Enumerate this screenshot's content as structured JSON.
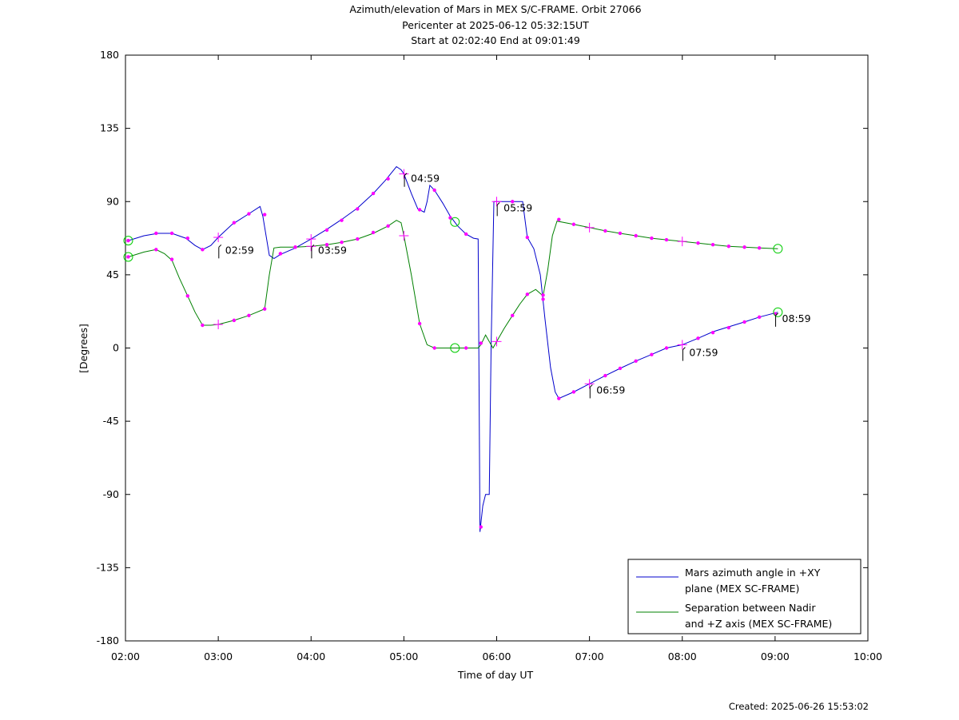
{
  "title": {
    "line1": "Azimuth/elevation of Mars in MEX S/C-FRAME.  Orbit 27066",
    "line2": "Pericenter at 2025-06-12 05:32:15UT",
    "line3": "Start at 02:02:40 End at 09:01:49"
  },
  "footer": {
    "created": "Created: 2025-06-26 15:53:02"
  },
  "chart_data": {
    "type": "line",
    "xlabel": "Time of day UT",
    "ylabel": "[Degrees]",
    "xlim": [
      2.0,
      10.0
    ],
    "ylim": [
      -180,
      180
    ],
    "x_ticks": [
      2,
      3,
      4,
      5,
      6,
      7,
      8,
      9,
      10
    ],
    "x_tick_labels": [
      "02:00",
      "03:00",
      "04:00",
      "05:00",
      "06:00",
      "07:00",
      "08:00",
      "09:00",
      "10:00"
    ],
    "y_ticks": [
      180,
      135,
      90,
      45,
      0,
      -45,
      -90,
      -135,
      -180
    ],
    "y_tick_labels": [
      "180",
      "135",
      "90",
      "45",
      "0",
      "-45",
      "-90",
      "-135",
      "-180"
    ],
    "grid": false,
    "legend_position": "bottom-right",
    "colors": {
      "azimuth": "#0000cc",
      "separation": "#008000",
      "marker": "#ff00ff",
      "endpoint": "#00cc00"
    },
    "series": [
      {
        "name_line1": "Mars azimuth angle in +XY",
        "name_line2": "plane (MEX SC-FRAME)",
        "color": "#0000cc",
        "points": [
          [
            2.03,
            66
          ],
          [
            2.2,
            69
          ],
          [
            2.35,
            70.5
          ],
          [
            2.5,
            70.5
          ],
          [
            2.65,
            67.5
          ],
          [
            2.75,
            63
          ],
          [
            2.83,
            60.5
          ],
          [
            2.92,
            63
          ],
          [
            3.0,
            68
          ],
          [
            3.15,
            76
          ],
          [
            3.33,
            82.5
          ],
          [
            3.45,
            87
          ],
          [
            3.48,
            81
          ],
          [
            3.55,
            57
          ],
          [
            3.6,
            55
          ],
          [
            3.67,
            57.5
          ],
          [
            3.83,
            61.5
          ],
          [
            4.0,
            67
          ],
          [
            4.17,
            73
          ],
          [
            4.33,
            79
          ],
          [
            4.5,
            86
          ],
          [
            4.67,
            95
          ],
          [
            4.8,
            103
          ],
          [
            4.92,
            111.5
          ],
          [
            4.97,
            109.5
          ],
          [
            5.0,
            107
          ],
          [
            5.08,
            95
          ],
          [
            5.15,
            85.5
          ],
          [
            5.22,
            83.5
          ],
          [
            5.25,
            90
          ],
          [
            5.28,
            100
          ],
          [
            5.33,
            97
          ],
          [
            5.42,
            89
          ],
          [
            5.5,
            81
          ],
          [
            5.58,
            75
          ],
          [
            5.67,
            70
          ],
          [
            5.75,
            67.5
          ],
          [
            5.8,
            67
          ],
          [
            5.82,
            -113
          ],
          [
            5.85,
            -97
          ],
          [
            5.88,
            -90
          ],
          [
            5.92,
            -90
          ],
          [
            5.94,
            0
          ],
          [
            5.97,
            90
          ],
          [
            6.0,
            90
          ],
          [
            6.17,
            90
          ],
          [
            6.28,
            90
          ],
          [
            6.33,
            68
          ],
          [
            6.4,
            61
          ],
          [
            6.47,
            45
          ],
          [
            6.52,
            18
          ],
          [
            6.58,
            -12
          ],
          [
            6.63,
            -27
          ],
          [
            6.67,
            -31
          ],
          [
            6.83,
            -27
          ],
          [
            7.0,
            -22
          ],
          [
            7.17,
            -17
          ],
          [
            7.33,
            -12.5
          ],
          [
            7.5,
            -8
          ],
          [
            7.67,
            -4
          ],
          [
            7.83,
            0
          ],
          [
            8.0,
            2
          ],
          [
            8.17,
            6
          ],
          [
            8.33,
            10
          ],
          [
            8.5,
            13
          ],
          [
            8.67,
            16
          ],
          [
            8.83,
            19
          ],
          [
            9.03,
            22
          ]
        ],
        "markers": [
          [
            2.03,
            66
          ],
          [
            2.33,
            70.5
          ],
          [
            2.5,
            70.5
          ],
          [
            2.67,
            67.5
          ],
          [
            2.83,
            60.5
          ],
          [
            3.17,
            77
          ],
          [
            3.33,
            82.5
          ],
          [
            3.5,
            82
          ],
          [
            3.67,
            58
          ],
          [
            3.83,
            62
          ],
          [
            4.17,
            72.5
          ],
          [
            4.33,
            78.5
          ],
          [
            4.5,
            85.5
          ],
          [
            4.67,
            95
          ],
          [
            4.83,
            104
          ],
          [
            5.17,
            85
          ],
          [
            5.33,
            97
          ],
          [
            5.5,
            80
          ],
          [
            5.67,
            70
          ],
          [
            5.83,
            -110
          ],
          [
            5.83,
            3
          ],
          [
            6.17,
            90
          ],
          [
            6.33,
            68
          ],
          [
            6.5,
            30
          ],
          [
            6.67,
            -31
          ],
          [
            6.83,
            -27
          ],
          [
            7.17,
            -17
          ],
          [
            7.33,
            -12.5
          ],
          [
            7.5,
            -8
          ],
          [
            7.67,
            -4
          ],
          [
            7.83,
            0
          ],
          [
            8.17,
            6
          ],
          [
            8.33,
            9.5
          ],
          [
            8.5,
            12.5
          ],
          [
            8.67,
            16
          ],
          [
            8.83,
            19
          ],
          [
            9.0,
            21
          ]
        ]
      },
      {
        "name_line1": "Separation between Nadir",
        "name_line2": "and +Z axis (MEX SC-FRAME)",
        "color": "#008000",
        "points": [
          [
            2.03,
            56
          ],
          [
            2.2,
            59
          ],
          [
            2.33,
            60.5
          ],
          [
            2.42,
            58
          ],
          [
            2.5,
            54
          ],
          [
            2.58,
            43
          ],
          [
            2.67,
            32
          ],
          [
            2.75,
            22
          ],
          [
            2.83,
            14
          ],
          [
            2.92,
            14
          ],
          [
            3.0,
            14.5
          ],
          [
            3.17,
            17
          ],
          [
            3.33,
            20
          ],
          [
            3.5,
            24
          ],
          [
            3.55,
            45
          ],
          [
            3.6,
            61.5
          ],
          [
            3.67,
            62
          ],
          [
            3.83,
            62
          ],
          [
            4.0,
            62.5
          ],
          [
            4.17,
            63.5
          ],
          [
            4.33,
            65
          ],
          [
            4.5,
            67
          ],
          [
            4.67,
            70.5
          ],
          [
            4.83,
            75
          ],
          [
            4.92,
            78.5
          ],
          [
            4.97,
            77
          ],
          [
            5.0,
            69
          ],
          [
            5.08,
            45
          ],
          [
            5.17,
            15
          ],
          [
            5.25,
            2
          ],
          [
            5.33,
            0
          ],
          [
            5.5,
            0
          ],
          [
            5.67,
            0
          ],
          [
            5.8,
            0
          ],
          [
            5.83,
            2
          ],
          [
            5.88,
            8
          ],
          [
            5.92,
            4
          ],
          [
            5.96,
            0
          ],
          [
            6.0,
            4
          ],
          [
            6.08,
            12
          ],
          [
            6.17,
            20
          ],
          [
            6.25,
            27
          ],
          [
            6.33,
            33
          ],
          [
            6.42,
            36
          ],
          [
            6.48,
            33
          ],
          [
            6.5,
            32
          ],
          [
            6.55,
            48
          ],
          [
            6.6,
            69
          ],
          [
            6.65,
            78
          ],
          [
            6.83,
            76
          ],
          [
            7.0,
            74
          ],
          [
            7.17,
            72
          ],
          [
            7.33,
            70.5
          ],
          [
            7.5,
            69
          ],
          [
            7.67,
            67.5
          ],
          [
            7.83,
            66.5
          ],
          [
            8.0,
            65.5
          ],
          [
            8.17,
            64.5
          ],
          [
            8.33,
            63.5
          ],
          [
            8.5,
            62.5
          ],
          [
            8.67,
            62
          ],
          [
            8.83,
            61.5
          ],
          [
            9.03,
            61
          ]
        ],
        "markers": [
          [
            2.03,
            56
          ],
          [
            2.33,
            60.5
          ],
          [
            2.5,
            54.5
          ],
          [
            2.67,
            32
          ],
          [
            2.83,
            14
          ],
          [
            3.17,
            17
          ],
          [
            3.33,
            20
          ],
          [
            3.5,
            24
          ],
          [
            3.67,
            58
          ],
          [
            3.83,
            62
          ],
          [
            4.17,
            63.5
          ],
          [
            4.33,
            65
          ],
          [
            4.5,
            67
          ],
          [
            4.67,
            71
          ],
          [
            4.83,
            75
          ],
          [
            5.17,
            15
          ],
          [
            5.33,
            0
          ],
          [
            5.67,
            0
          ],
          [
            6.17,
            20
          ],
          [
            6.33,
            33
          ],
          [
            6.5,
            32.5
          ],
          [
            6.67,
            79
          ],
          [
            6.83,
            76
          ],
          [
            7.17,
            72
          ],
          [
            7.33,
            70.5
          ],
          [
            7.5,
            69
          ],
          [
            7.67,
            67.5
          ],
          [
            7.83,
            66.5
          ],
          [
            8.17,
            64.5
          ],
          [
            8.33,
            63.5
          ],
          [
            8.5,
            62.5
          ],
          [
            8.67,
            62
          ],
          [
            8.83,
            61.5
          ]
        ]
      }
    ],
    "hour_marks": [
      {
        "x": 3.0,
        "y": 68,
        "series": "azimuth"
      },
      {
        "x": 3.0,
        "y": 14.5,
        "series": "separation"
      },
      {
        "x": 4.0,
        "y": 67,
        "series": "azimuth"
      },
      {
        "x": 4.0,
        "y": 62.5,
        "series": "separation"
      },
      {
        "x": 5.0,
        "y": 107,
        "series": "azimuth"
      },
      {
        "x": 5.0,
        "y": 69,
        "series": "separation"
      },
      {
        "x": 6.0,
        "y": 90,
        "series": "azimuth"
      },
      {
        "x": 6.0,
        "y": 4,
        "series": "separation"
      },
      {
        "x": 7.0,
        "y": -22,
        "series": "azimuth"
      },
      {
        "x": 7.0,
        "y": 74,
        "series": "separation"
      },
      {
        "x": 8.0,
        "y": 2,
        "series": "azimuth"
      },
      {
        "x": 8.0,
        "y": 65.5,
        "series": "separation"
      }
    ],
    "circle_marks": [
      {
        "x": 2.03,
        "y": 66
      },
      {
        "x": 2.03,
        "y": 56
      },
      {
        "x": 5.55,
        "y": 77.5
      },
      {
        "x": 5.55,
        "y": 0
      },
      {
        "x": 9.03,
        "y": 22
      },
      {
        "x": 9.03,
        "y": 61
      }
    ],
    "time_labels": [
      {
        "x": 2.98,
        "y": 60,
        "text": "02:59"
      },
      {
        "x": 3.98,
        "y": 60,
        "text": "03:59"
      },
      {
        "x": 4.98,
        "y": 104,
        "text": "04:59"
      },
      {
        "x": 5.98,
        "y": 86,
        "text": "05:59"
      },
      {
        "x": 6.98,
        "y": -26,
        "text": "06:59"
      },
      {
        "x": 7.98,
        "y": -3,
        "text": "07:59"
      },
      {
        "x": 8.98,
        "y": 18,
        "text": "08:59"
      }
    ]
  }
}
